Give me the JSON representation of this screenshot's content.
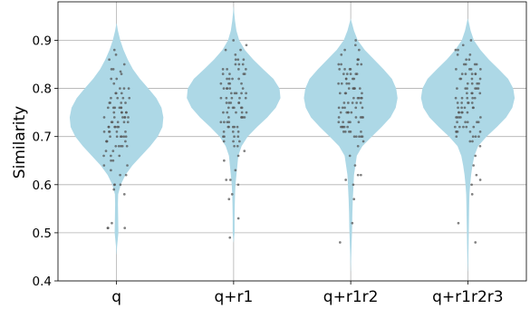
{
  "chart_data": {
    "type": "violin",
    "title": "",
    "xlabel": "",
    "ylabel": "Similarity",
    "ylim": [
      0.4,
      0.98
    ],
    "yticks": [
      0.4,
      0.5,
      0.6,
      0.7,
      0.8,
      0.9
    ],
    "grid": true,
    "categories": [
      "q",
      "q+r1",
      "q+r1r2",
      "q+r1r2r3"
    ],
    "colors": {
      "violin": "#add8e6",
      "points": "#555555",
      "grid": "#b0b0b0"
    },
    "violins": [
      {
        "name": "q",
        "min": 0.455,
        "max": 0.935,
        "density": [
          [
            0.455,
            0.002
          ],
          [
            0.47,
            0.01
          ],
          [
            0.5,
            0.04
          ],
          [
            0.53,
            0.035
          ],
          [
            0.56,
            0.03
          ],
          [
            0.58,
            0.035
          ],
          [
            0.6,
            0.09
          ],
          [
            0.62,
            0.19
          ],
          [
            0.64,
            0.34
          ],
          [
            0.66,
            0.53
          ],
          [
            0.68,
            0.72
          ],
          [
            0.7,
            0.88
          ],
          [
            0.72,
            0.98
          ],
          [
            0.74,
            1.0
          ],
          [
            0.76,
            0.96
          ],
          [
            0.78,
            0.85
          ],
          [
            0.8,
            0.68
          ],
          [
            0.82,
            0.5
          ],
          [
            0.84,
            0.35
          ],
          [
            0.86,
            0.24
          ],
          [
            0.88,
            0.15
          ],
          [
            0.9,
            0.08
          ],
          [
            0.92,
            0.03
          ],
          [
            0.935,
            0.003
          ]
        ]
      },
      {
        "name": "q+r1",
        "min": 0.48,
        "max": 0.97,
        "density": [
          [
            0.48,
            0.002
          ],
          [
            0.5,
            0.02
          ],
          [
            0.53,
            0.02
          ],
          [
            0.56,
            0.025
          ],
          [
            0.58,
            0.03
          ],
          [
            0.6,
            0.04
          ],
          [
            0.62,
            0.06
          ],
          [
            0.64,
            0.08
          ],
          [
            0.66,
            0.1
          ],
          [
            0.68,
            0.17
          ],
          [
            0.7,
            0.3
          ],
          [
            0.72,
            0.5
          ],
          [
            0.74,
            0.72
          ],
          [
            0.76,
            0.9
          ],
          [
            0.78,
            1.0
          ],
          [
            0.8,
            0.98
          ],
          [
            0.82,
            0.85
          ],
          [
            0.84,
            0.63
          ],
          [
            0.86,
            0.42
          ],
          [
            0.88,
            0.24
          ],
          [
            0.9,
            0.12
          ],
          [
            0.92,
            0.06
          ],
          [
            0.94,
            0.03
          ],
          [
            0.96,
            0.01
          ],
          [
            0.97,
            0.002
          ]
        ]
      },
      {
        "name": "q+r1r2",
        "min": 0.42,
        "max": 0.945,
        "density": [
          [
            0.42,
            0.002
          ],
          [
            0.45,
            0.01
          ],
          [
            0.48,
            0.02
          ],
          [
            0.51,
            0.03
          ],
          [
            0.54,
            0.035
          ],
          [
            0.57,
            0.045
          ],
          [
            0.6,
            0.06
          ],
          [
            0.62,
            0.07
          ],
          [
            0.64,
            0.1
          ],
          [
            0.66,
            0.13
          ],
          [
            0.68,
            0.25
          ],
          [
            0.7,
            0.45
          ],
          [
            0.72,
            0.66
          ],
          [
            0.74,
            0.85
          ],
          [
            0.76,
            0.96
          ],
          [
            0.78,
            1.0
          ],
          [
            0.8,
            0.97
          ],
          [
            0.82,
            0.88
          ],
          [
            0.84,
            0.7
          ],
          [
            0.86,
            0.5
          ],
          [
            0.88,
            0.3
          ],
          [
            0.9,
            0.15
          ],
          [
            0.92,
            0.07
          ],
          [
            0.94,
            0.015
          ],
          [
            0.945,
            0.002
          ]
        ]
      },
      {
        "name": "q+r1r2r3",
        "min": 0.42,
        "max": 0.945,
        "density": [
          [
            0.42,
            0.002
          ],
          [
            0.44,
            0.008
          ],
          [
            0.47,
            0.015
          ],
          [
            0.5,
            0.02
          ],
          [
            0.53,
            0.025
          ],
          [
            0.56,
            0.03
          ],
          [
            0.58,
            0.035
          ],
          [
            0.6,
            0.05
          ],
          [
            0.62,
            0.07
          ],
          [
            0.64,
            0.1
          ],
          [
            0.66,
            0.14
          ],
          [
            0.68,
            0.22
          ],
          [
            0.7,
            0.4
          ],
          [
            0.72,
            0.62
          ],
          [
            0.74,
            0.82
          ],
          [
            0.76,
            0.95
          ],
          [
            0.78,
            1.0
          ],
          [
            0.8,
            0.97
          ],
          [
            0.82,
            0.86
          ],
          [
            0.84,
            0.66
          ],
          [
            0.86,
            0.45
          ],
          [
            0.88,
            0.27
          ],
          [
            0.9,
            0.13
          ],
          [
            0.92,
            0.06
          ],
          [
            0.94,
            0.015
          ],
          [
            0.945,
            0.002
          ]
        ]
      }
    ],
    "points": [
      [
        0.835,
        0.84,
        0.8,
        0.78,
        0.77,
        0.76,
        0.76,
        0.75,
        0.75,
        0.74,
        0.74,
        0.73,
        0.73,
        0.72,
        0.72,
        0.71,
        0.71,
        0.7,
        0.7,
        0.69,
        0.69,
        0.68,
        0.68,
        0.67,
        0.66,
        0.65,
        0.64,
        0.62,
        0.6,
        0.6,
        0.51,
        0.51,
        0.51,
        0.52,
        0.84,
        0.82,
        0.8,
        0.79,
        0.78,
        0.77,
        0.76,
        0.75,
        0.74,
        0.73,
        0.72,
        0.71,
        0.7,
        0.69,
        0.68,
        0.67,
        0.83,
        0.81,
        0.79,
        0.77,
        0.76,
        0.75,
        0.74,
        0.73,
        0.72,
        0.71,
        0.7,
        0.69,
        0.68,
        0.66,
        0.65,
        0.63,
        0.88,
        0.86,
        0.85,
        0.87,
        0.78,
        0.77,
        0.76,
        0.75,
        0.74,
        0.73,
        0.72,
        0.71,
        0.7,
        0.82,
        0.79,
        0.74,
        0.72,
        0.7,
        0.68,
        0.66,
        0.64,
        0.62,
        0.6,
        0.59,
        0.58,
        0.76,
        0.78,
        0.8
      ],
      [
        0.89,
        0.9,
        0.88,
        0.87,
        0.86,
        0.85,
        0.85,
        0.84,
        0.84,
        0.83,
        0.83,
        0.82,
        0.82,
        0.81,
        0.81,
        0.8,
        0.8,
        0.79,
        0.79,
        0.78,
        0.78,
        0.77,
        0.77,
        0.76,
        0.76,
        0.75,
        0.75,
        0.74,
        0.74,
        0.73,
        0.73,
        0.72,
        0.72,
        0.71,
        0.7,
        0.69,
        0.68,
        0.67,
        0.66,
        0.65,
        0.63,
        0.61,
        0.6,
        0.58,
        0.57,
        0.53,
        0.49,
        0.61,
        0.84,
        0.82,
        0.8,
        0.79,
        0.78,
        0.77,
        0.76,
        0.75,
        0.74,
        0.73,
        0.72,
        0.71,
        0.7,
        0.86,
        0.83,
        0.81,
        0.79,
        0.77,
        0.75,
        0.73,
        0.71,
        0.69,
        0.88,
        0.85,
        0.82,
        0.8,
        0.78,
        0.76,
        0.74,
        0.72,
        0.7,
        0.83,
        0.81,
        0.79,
        0.77,
        0.75,
        0.86,
        0.84,
        0.8,
        0.78,
        0.76,
        0.74,
        0.72,
        0.7,
        0.69,
        0.68
      ],
      [
        0.9,
        0.89,
        0.88,
        0.87,
        0.86,
        0.85,
        0.85,
        0.84,
        0.84,
        0.83,
        0.83,
        0.82,
        0.82,
        0.81,
        0.81,
        0.8,
        0.8,
        0.79,
        0.79,
        0.78,
        0.78,
        0.77,
        0.77,
        0.76,
        0.76,
        0.75,
        0.75,
        0.74,
        0.74,
        0.73,
        0.73,
        0.72,
        0.72,
        0.71,
        0.71,
        0.7,
        0.7,
        0.69,
        0.68,
        0.66,
        0.64,
        0.62,
        0.61,
        0.62,
        0.6,
        0.57,
        0.52,
        0.48,
        0.85,
        0.83,
        0.81,
        0.8,
        0.79,
        0.78,
        0.77,
        0.76,
        0.75,
        0.74,
        0.73,
        0.72,
        0.71,
        0.7,
        0.86,
        0.84,
        0.82,
        0.8,
        0.78,
        0.76,
        0.74,
        0.72,
        0.7,
        0.88,
        0.85,
        0.83,
        0.81,
        0.79,
        0.77,
        0.75,
        0.73,
        0.71,
        0.84,
        0.82,
        0.8,
        0.78,
        0.76,
        0.74,
        0.72,
        0.86,
        0.83,
        0.8,
        0.77,
        0.75,
        0.73,
        0.71,
        0.7
      ],
      [
        0.9,
        0.89,
        0.88,
        0.87,
        0.86,
        0.85,
        0.85,
        0.84,
        0.84,
        0.83,
        0.83,
        0.82,
        0.82,
        0.81,
        0.81,
        0.8,
        0.8,
        0.79,
        0.79,
        0.78,
        0.78,
        0.77,
        0.77,
        0.76,
        0.76,
        0.75,
        0.75,
        0.74,
        0.74,
        0.73,
        0.73,
        0.72,
        0.72,
        0.71,
        0.71,
        0.7,
        0.69,
        0.68,
        0.66,
        0.64,
        0.62,
        0.61,
        0.6,
        0.58,
        0.52,
        0.48,
        0.85,
        0.83,
        0.81,
        0.8,
        0.79,
        0.78,
        0.77,
        0.76,
        0.75,
        0.74,
        0.73,
        0.72,
        0.71,
        0.7,
        0.86,
        0.84,
        0.82,
        0.8,
        0.78,
        0.76,
        0.74,
        0.72,
        0.7,
        0.88,
        0.85,
        0.83,
        0.81,
        0.79,
        0.77,
        0.75,
        0.73,
        0.71,
        0.84,
        0.82,
        0.8,
        0.78,
        0.76,
        0.74,
        0.72,
        0.87,
        0.83,
        0.8,
        0.77,
        0.75,
        0.73,
        0.71,
        0.7,
        0.69
      ]
    ]
  }
}
